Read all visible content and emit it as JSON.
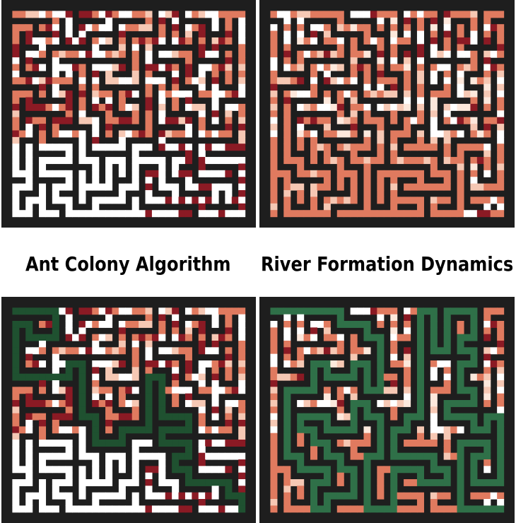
{
  "labels": {
    "left": "Ant Colony Algorithm",
    "right": "River Formation Dynamics"
  },
  "colors": {
    "wall": "#1e1e1e",
    "free": "#ffffff",
    "trail_strong": "#8b1a24",
    "trail_medium": "#e07a5f",
    "trail_light": "#f6c8b4",
    "trail_faint": "#fde8dc",
    "solution_path": "#1f5130",
    "solution_path_rfd": "#2f7048"
  },
  "panels": [
    {
      "id": "ant-colony-maze-exploration"
    },
    {
      "id": "river-formation-maze-exploration"
    },
    {
      "id": "ant-colony-maze-solution"
    },
    {
      "id": "river-formation-maze-solution"
    }
  ]
}
